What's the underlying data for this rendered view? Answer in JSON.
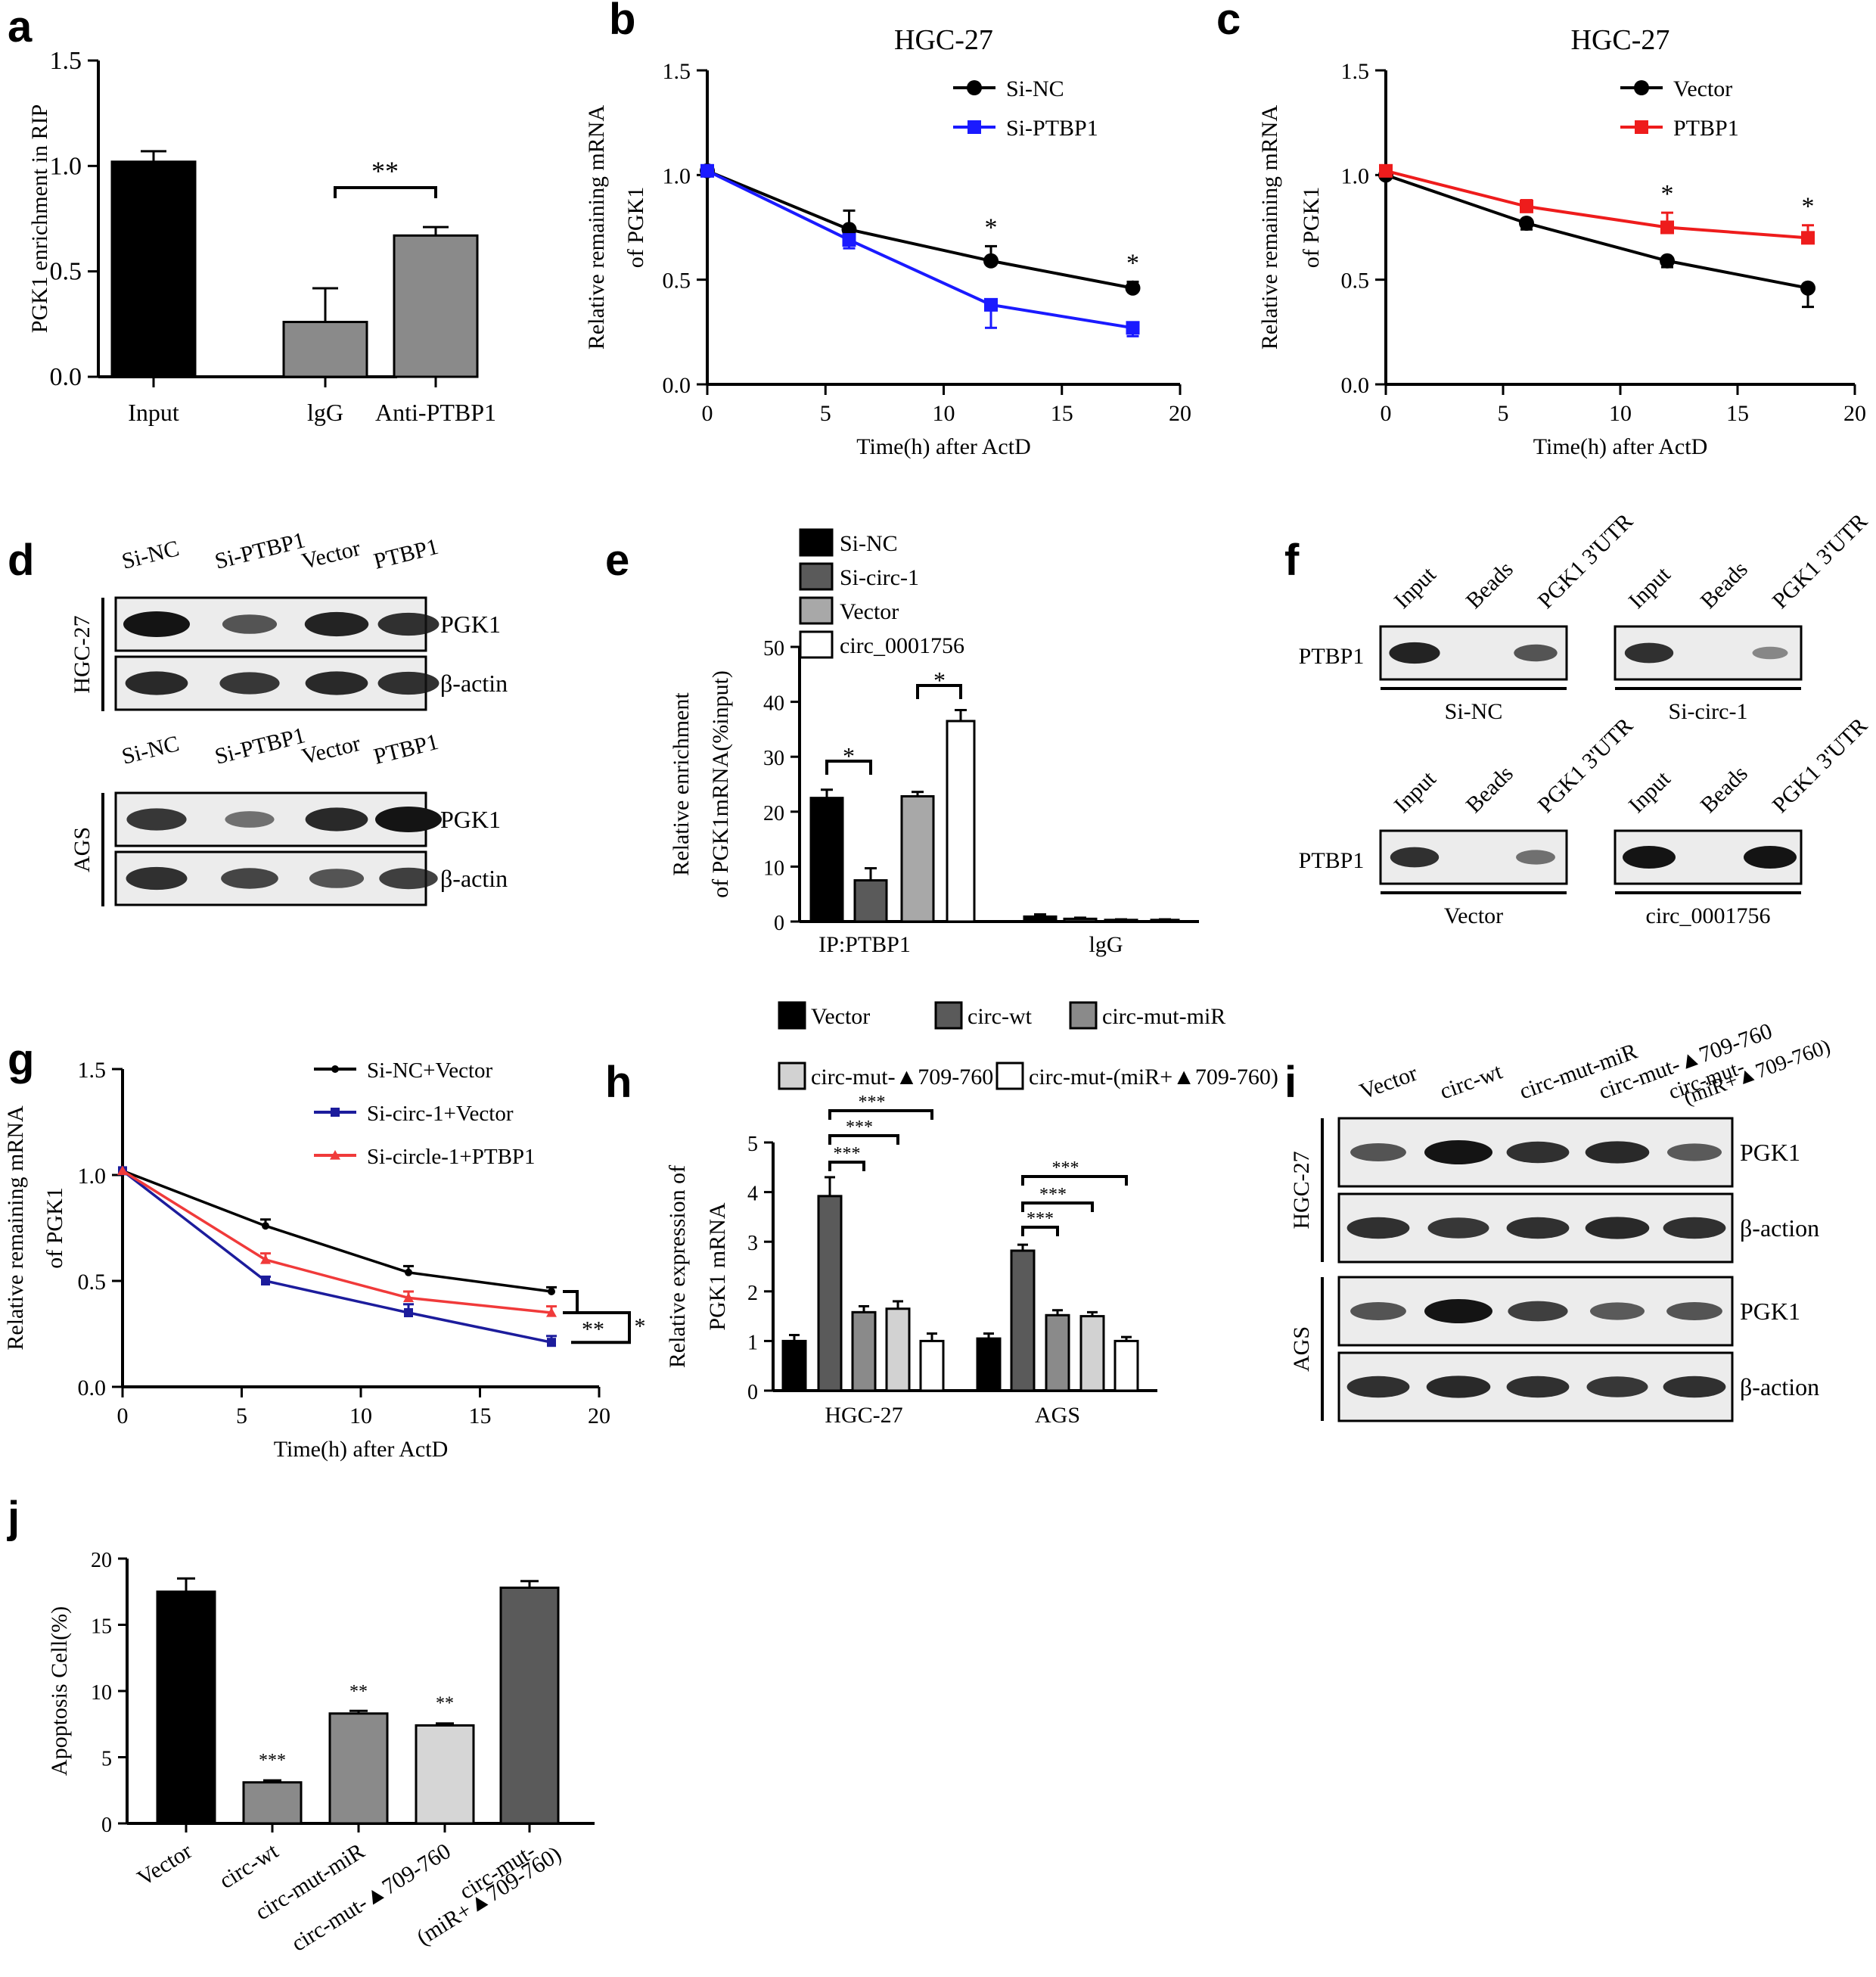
{
  "figure": {
    "panel_letters": [
      "a",
      "b",
      "c",
      "d",
      "e",
      "f",
      "g",
      "h",
      "i",
      "j"
    ]
  },
  "colors": {
    "black": "#000000",
    "blue": "#1a1aff",
    "red": "#ee1c1c",
    "navy": "#1c1c9c",
    "red_g": "#f03a3a",
    "dark_gray": "#5a5a5a",
    "mid_gray": "#8a8a8a",
    "light_gray": "#b4b4b4",
    "lighter_gray": "#d6d6d6",
    "blot_bg": "#ececec",
    "band": "#141414"
  },
  "chart_data": [
    {
      "panel": "a",
      "type": "bar",
      "title": "",
      "xlabel": "",
      "ylabel": "PGK1 enrichment in RIP",
      "categories": [
        "Input",
        "lgG",
        "Anti-PTBP1"
      ],
      "values": [
        1.02,
        0.26,
        0.67
      ],
      "errors": [
        0.05,
        0.16,
        0.04
      ],
      "fills": [
        "#000000",
        "#8a8a8a",
        "#8a8a8a"
      ],
      "ylim": [
        0,
        1.5
      ],
      "yticks": [
        "0.0",
        "0.5",
        "1.0",
        "1.5"
      ],
      "annotations": [
        {
          "text": "**",
          "between": [
            "lgG",
            "Anti-PTBP1"
          ]
        }
      ]
    },
    {
      "panel": "b",
      "type": "line",
      "title": "HGC-27",
      "xlabel": "Time(h) after ActD",
      "ylabel_line1": "Relative remaining mRNA",
      "ylabel_line2": "of PGK1",
      "x": [
        0,
        6,
        12,
        18
      ],
      "xlim": [
        0,
        20
      ],
      "ylim": [
        0,
        1.5
      ],
      "xticks": [
        "0",
        "5",
        "10",
        "15",
        "20"
      ],
      "yticks": [
        "0.0",
        "0.5",
        "1.0",
        "1.5"
      ],
      "series": [
        {
          "name": "Si-NC",
          "values": [
            1.02,
            0.74,
            0.59,
            0.46
          ],
          "errors": [
            0.02,
            0.09,
            0.07,
            0.03
          ],
          "color": "#000000",
          "marker": "circle"
        },
        {
          "name": "Si-PTBP1",
          "values": [
            1.02,
            0.69,
            0.38,
            0.27
          ],
          "errors": [
            0.02,
            0.04,
            0.11,
            0.04
          ],
          "color": "#1a1aff",
          "marker": "square"
        }
      ],
      "significance": [
        {
          "x": 12,
          "text": "*"
        },
        {
          "x": 18,
          "text": "*"
        }
      ]
    },
    {
      "panel": "c",
      "type": "line",
      "title": "HGC-27",
      "xlabel": "Time(h) after ActD",
      "ylabel_line1": "Relative remaining mRNA",
      "ylabel_line2": "of PGK1",
      "x": [
        0,
        6,
        12,
        18
      ],
      "xlim": [
        0,
        20
      ],
      "ylim": [
        0,
        1.5
      ],
      "xticks": [
        "0",
        "5",
        "10",
        "15",
        "20"
      ],
      "yticks": [
        "0.0",
        "0.5",
        "1.0",
        "1.5"
      ],
      "series": [
        {
          "name": "Vector",
          "values": [
            1.0,
            0.77,
            0.59,
            0.46
          ],
          "errors": [
            0.02,
            0.03,
            0.03,
            0.09
          ],
          "color": "#000000",
          "marker": "circle"
        },
        {
          "name": "PTBP1",
          "values": [
            1.02,
            0.85,
            0.75,
            0.7
          ],
          "errors": [
            0.02,
            0.03,
            0.07,
            0.06
          ],
          "color": "#ee1c1c",
          "marker": "square"
        }
      ],
      "significance": [
        {
          "x": 12,
          "text": "*"
        },
        {
          "x": 18,
          "text": "*"
        }
      ]
    },
    {
      "panel": "e",
      "type": "bar",
      "title": "",
      "xlabel": "",
      "ylabel_line1": "Relative enrichment",
      "ylabel_line2": "of PGK1mRNA(%input)",
      "groups": [
        "IP:PTBP1",
        "lgG"
      ],
      "ylim": [
        0,
        50
      ],
      "yticks": [
        "0",
        "10",
        "20",
        "30",
        "40",
        "50"
      ],
      "series": [
        {
          "name": "Si-NC",
          "values": [
            22.5,
            0.9
          ],
          "errors": [
            1.5,
            0.4
          ],
          "fill": "#000000"
        },
        {
          "name": "Si-circ-1",
          "values": [
            7.5,
            0.5
          ],
          "errors": [
            2.2,
            0.2
          ],
          "fill": "#5a5a5a"
        },
        {
          "name": "Vector",
          "values": [
            22.8,
            0.3
          ],
          "errors": [
            0.8,
            0.1
          ],
          "fill": "#a8a8a8"
        },
        {
          "name": "circ_0001756",
          "values": [
            36.5,
            0.3
          ],
          "errors": [
            2.0,
            0.1
          ],
          "fill": "#ffffff"
        }
      ],
      "annotations": [
        {
          "text": "*",
          "between": [
            "Si-NC",
            "Si-circ-1"
          ]
        },
        {
          "text": "*",
          "between": [
            "Vector",
            "circ_0001756"
          ]
        }
      ]
    },
    {
      "panel": "g",
      "type": "line",
      "title": "",
      "xlabel": "Time(h) after ActD",
      "ylabel_line1": "Relative remaining mRNA",
      "ylabel_line2": "of PGK1",
      "x": [
        0,
        6,
        12,
        18
      ],
      "xlim": [
        0,
        20
      ],
      "ylim": [
        0,
        1.5
      ],
      "xticks": [
        "0",
        "5",
        "10",
        "15",
        "20"
      ],
      "yticks": [
        "0.0",
        "0.5",
        "1.0",
        "1.5"
      ],
      "series": [
        {
          "name": "Si-NC+Vector",
          "values": [
            1.02,
            0.76,
            0.54,
            0.45
          ],
          "errors": [
            0.02,
            0.03,
            0.03,
            0.02
          ],
          "color": "#000000",
          "marker": "dot"
        },
        {
          "name": "Si-circ-1+Vector",
          "values": [
            1.02,
            0.5,
            0.35,
            0.21
          ],
          "errors": [
            0.02,
            0.02,
            0.04,
            0.03
          ],
          "color": "#1c1c9c",
          "marker": "square-small"
        },
        {
          "name": "Si-circle-1+PTBP1",
          "values": [
            1.02,
            0.6,
            0.42,
            0.35
          ],
          "errors": [
            0.02,
            0.03,
            0.03,
            0.03
          ],
          "color": "#f03a3a",
          "marker": "triangle"
        }
      ],
      "annotations": [
        {
          "text": "**"
        },
        {
          "text": "*"
        }
      ]
    },
    {
      "panel": "h",
      "type": "bar",
      "title": "",
      "xlabel": "",
      "ylabel_line1": "Relative expression of",
      "ylabel_line2": "PGK1 mRNA",
      "groups": [
        "HGC-27",
        "AGS"
      ],
      "ylim": [
        0,
        5
      ],
      "yticks": [
        "0",
        "1",
        "2",
        "3",
        "4",
        "5"
      ],
      "series": [
        {
          "name": "Vector",
          "values": [
            1.0,
            1.05
          ],
          "errors": [
            0.12,
            0.1
          ],
          "fill": "#000000"
        },
        {
          "name": "circ-wt",
          "values": [
            3.92,
            2.82
          ],
          "errors": [
            0.38,
            0.12
          ],
          "fill": "#5a5a5a"
        },
        {
          "name": "circ-mut-miR",
          "values": [
            1.58,
            1.52
          ],
          "errors": [
            0.12,
            0.1
          ],
          "fill": "#8a8a8a"
        },
        {
          "name": "circ-mut-▲709-760",
          "values": [
            1.65,
            1.5
          ],
          "errors": [
            0.15,
            0.08
          ],
          "fill": "#d2d2d2"
        },
        {
          "name": "circ-mut-(miR+▲709-760)",
          "values": [
            1.0,
            1.0
          ],
          "errors": [
            0.15,
            0.08
          ],
          "fill": "#ffffff"
        }
      ],
      "annotations": [
        {
          "text": "***"
        },
        {
          "text": "***"
        },
        {
          "text": "***"
        },
        {
          "text": "***"
        },
        {
          "text": "***"
        },
        {
          "text": "***"
        }
      ]
    },
    {
      "panel": "j",
      "type": "bar",
      "title": "",
      "xlabel": "",
      "ylabel": "Apoptosis Cell(%)",
      "categories": [
        "Vector",
        "circ-wt",
        "circ-mut-miR",
        "circ-mut-▲709-760",
        "circ-mut-(miR+▲709-760)"
      ],
      "category_lines": [
        [
          "Vector"
        ],
        [
          "circ-wt"
        ],
        [
          "circ-mut-miR"
        ],
        [
          "circ-mut-▲709-760"
        ],
        [
          "circ-mut-",
          "(miR+▲709-760)"
        ]
      ],
      "values": [
        17.5,
        3.1,
        8.3,
        7.4,
        17.8
      ],
      "errors": [
        1.0,
        0.15,
        0.2,
        0.15,
        0.5
      ],
      "fills": [
        "#000000",
        "#8a8a8a",
        "#8a8a8a",
        "#d6d6d6",
        "#5a5a5a"
      ],
      "ylim": [
        0,
        20
      ],
      "yticks": [
        "0",
        "5",
        "10",
        "15",
        "20"
      ],
      "labels": [
        "",
        "***",
        "**",
        "**",
        ""
      ]
    }
  ],
  "blots": {
    "d": {
      "groups": [
        {
          "cell_line": "HGC-27",
          "lanes": [
            "Si-NC",
            "Si-PTBP1",
            "Vector",
            "PTBP1"
          ],
          "rows": [
            "PGK1",
            "β-actin"
          ],
          "intensity": [
            [
              1.0,
              0.55,
              0.9,
              0.8
            ],
            [
              0.85,
              0.75,
              0.85,
              0.8
            ]
          ]
        },
        {
          "cell_line": "AGS",
          "lanes": [
            "Si-NC",
            "Si-PTBP1",
            "Vector",
            "PTBP1"
          ],
          "rows": [
            "PGK1",
            "β-actin"
          ],
          "intensity": [
            [
              0.75,
              0.35,
              0.85,
              1.0
            ],
            [
              0.8,
              0.65,
              0.55,
              0.7
            ]
          ]
        }
      ]
    },
    "f": {
      "row_label": "PTBP1",
      "lanes": [
        "Input",
        "Beads",
        "PGK1 3'UTR"
      ],
      "panels": [
        {
          "condition": "Si-NC",
          "intensity": [
            0.9,
            0.0,
            0.55
          ]
        },
        {
          "condition": "Si-circ-1",
          "intensity": [
            0.8,
            0.0,
            0.18
          ]
        },
        {
          "condition": "Vector",
          "intensity": [
            0.8,
            0.0,
            0.35
          ]
        },
        {
          "condition": "circ_0001756",
          "intensity": [
            1.0,
            0.0,
            1.0
          ]
        }
      ]
    },
    "i": {
      "lanes": [
        "Vector",
        "circ-wt",
        "circ-mut-miR",
        "circ-mut-▲709-760"
      ],
      "last_lane_lines": [
        "circ-mut-",
        "(miR+▲709-760)"
      ],
      "groups": [
        {
          "cell_line": "HGC-27",
          "rows": [
            "PGK1",
            "β-action"
          ],
          "intensity": [
            [
              0.55,
              1.0,
              0.8,
              0.85,
              0.5
            ],
            [
              0.8,
              0.75,
              0.8,
              0.85,
              0.8
            ]
          ]
        },
        {
          "cell_line": "AGS",
          "rows": [
            "PGK1",
            "β-action"
          ],
          "intensity": [
            [
              0.55,
              1.0,
              0.7,
              0.5,
              0.55
            ],
            [
              0.8,
              0.85,
              0.8,
              0.75,
              0.8
            ]
          ]
        }
      ]
    }
  }
}
